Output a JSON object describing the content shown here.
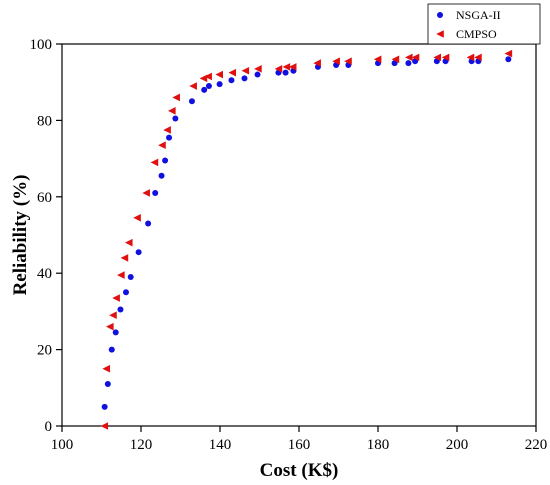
{
  "chart_data": {
    "type": "scatter",
    "xlabel": "Cost (K$)",
    "ylabel": "Reliability (%)",
    "xlim": [
      100,
      220
    ],
    "ylim": [
      0,
      100
    ],
    "xticks": [
      100,
      120,
      140,
      160,
      180,
      200,
      220
    ],
    "yticks": [
      0,
      20,
      40,
      60,
      80,
      100
    ],
    "grid": false,
    "legend_position": "top-right",
    "series": [
      {
        "name": "NSGA-II",
        "marker": "circle",
        "color": "#1010e0",
        "points": [
          [
            110.8,
            5
          ],
          [
            111.6,
            11
          ],
          [
            112.6,
            20
          ],
          [
            113.6,
            24.5
          ],
          [
            114.8,
            30.5
          ],
          [
            116.2,
            35
          ],
          [
            117.4,
            39
          ],
          [
            119.4,
            45.5
          ],
          [
            121.8,
            53
          ],
          [
            123.6,
            61
          ],
          [
            125.2,
            65.5
          ],
          [
            126.1,
            69.5
          ],
          [
            127.1,
            75.5
          ],
          [
            128.7,
            80.5
          ],
          [
            132.9,
            85
          ],
          [
            136.0,
            88
          ],
          [
            137.2,
            89
          ],
          [
            139.9,
            89.5
          ],
          [
            142.9,
            90.5
          ],
          [
            146.2,
            91
          ],
          [
            149.5,
            92
          ],
          [
            154.8,
            92.5
          ],
          [
            156.6,
            92.5
          ],
          [
            158.6,
            93
          ],
          [
            164.8,
            94
          ],
          [
            169.4,
            94.5
          ],
          [
            172.5,
            94.5
          ],
          [
            180.0,
            95
          ],
          [
            184.2,
            95
          ],
          [
            187.7,
            95
          ],
          [
            189.4,
            95.5
          ],
          [
            194.9,
            95.5
          ],
          [
            197.1,
            95.5
          ],
          [
            203.7,
            95.5
          ],
          [
            205.4,
            95.5
          ],
          [
            213.0,
            96
          ]
        ]
      },
      {
        "name": "CMPSO",
        "marker": "triangle-left",
        "color": "#e01010",
        "points": [
          [
            110.7,
            0
          ],
          [
            111.2,
            15
          ],
          [
            112.1,
            26
          ],
          [
            112.9,
            29
          ],
          [
            113.7,
            33.5
          ],
          [
            114.9,
            39.5
          ],
          [
            115.8,
            44
          ],
          [
            116.9,
            48
          ],
          [
            119.0,
            54.5
          ],
          [
            121.3,
            61
          ],
          [
            123.4,
            69
          ],
          [
            125.3,
            73.5
          ],
          [
            126.6,
            77.5
          ],
          [
            127.8,
            82.5
          ],
          [
            128.9,
            86
          ],
          [
            133.2,
            89
          ],
          [
            135.8,
            91
          ],
          [
            137.0,
            91.5
          ],
          [
            139.8,
            92
          ],
          [
            143.1,
            92.5
          ],
          [
            146.4,
            93
          ],
          [
            149.6,
            93.5
          ],
          [
            154.8,
            93.5
          ],
          [
            156.8,
            94
          ],
          [
            158.4,
            94
          ],
          [
            164.6,
            95
          ],
          [
            169.4,
            95.5
          ],
          [
            172.4,
            95.5
          ],
          [
            179.9,
            96
          ],
          [
            184.4,
            96
          ],
          [
            187.8,
            96.5
          ],
          [
            189.5,
            96.5
          ],
          [
            195.0,
            96.5
          ],
          [
            197.1,
            96.5
          ],
          [
            203.4,
            96.5
          ],
          [
            205.3,
            96.5
          ],
          [
            213.0,
            97.5
          ]
        ]
      }
    ]
  }
}
